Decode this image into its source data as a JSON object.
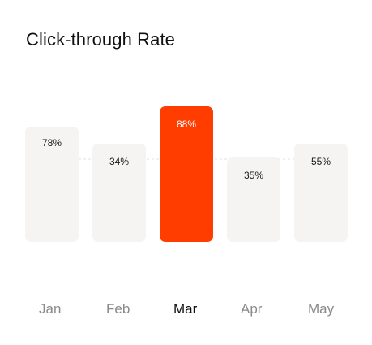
{
  "title": "Click-through Rate",
  "colors": {
    "highlight": "#ff3d00",
    "bar": "#f5f4f2",
    "label_dark": "#1a1a1a",
    "label_light": "#ffffff",
    "month_muted": "#8a8a8a",
    "month_active": "#111111",
    "reference_line": "#e2e2e2"
  },
  "chart_data": {
    "type": "bar",
    "title": "Click-through Rate",
    "categories": [
      "Jan",
      "Feb",
      "Mar",
      "Apr",
      "May"
    ],
    "values": [
      78,
      34,
      88,
      35,
      55
    ],
    "value_labels": [
      "78%",
      "34%",
      "88%",
      "35%",
      "55%"
    ],
    "highlighted": "Mar",
    "reference_line": "dashed",
    "grid": false,
    "legend": "none"
  }
}
